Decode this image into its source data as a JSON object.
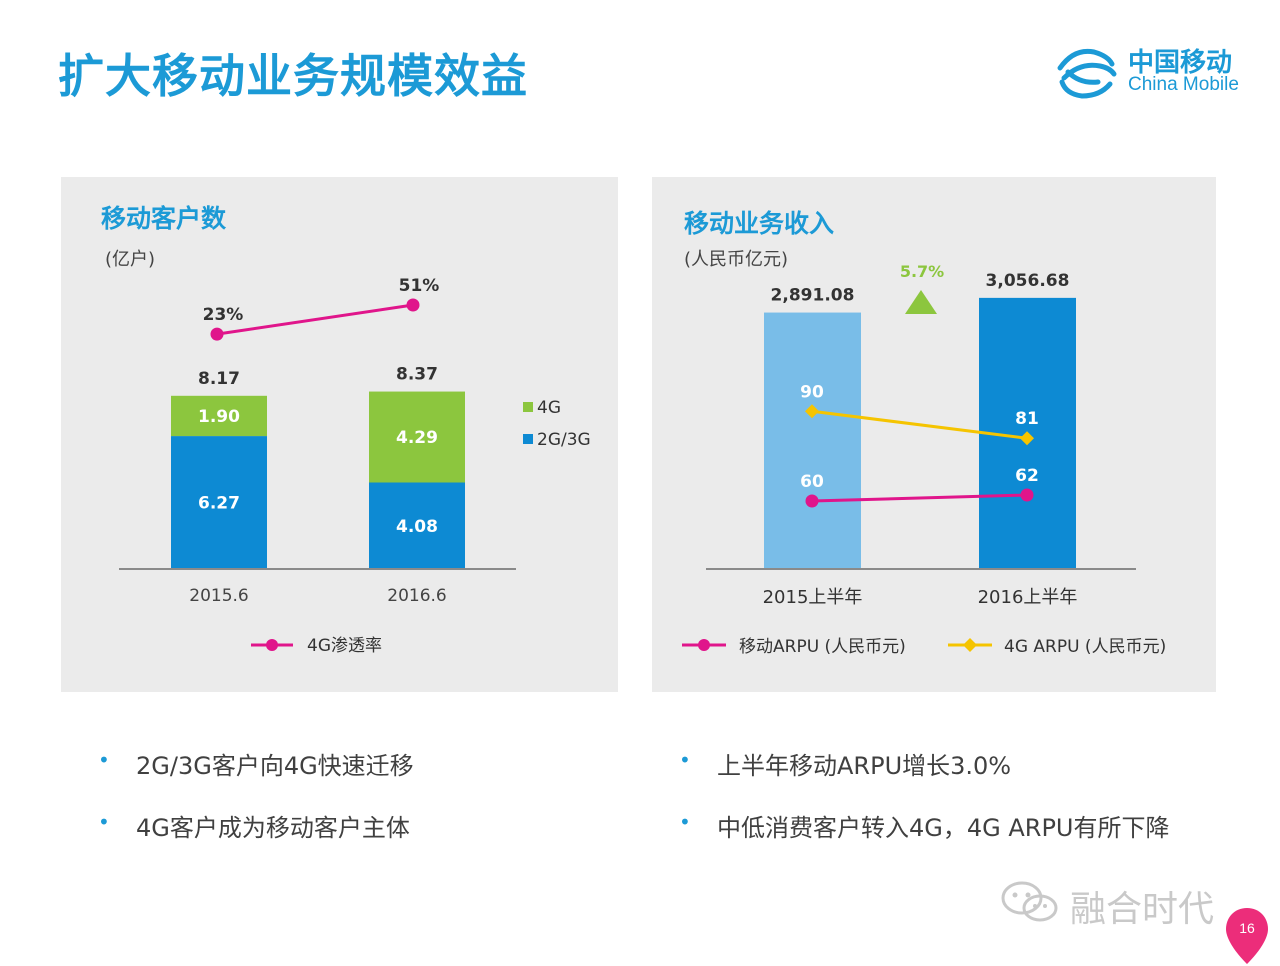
{
  "title": "扩大移动业务规模效益",
  "logo": {
    "name": "中国移动",
    "en": "China Mobile"
  },
  "colors": {
    "title_blue": "#1c9ad6",
    "bar_blue": "#0d8ad3",
    "bar_light_blue": "#79bde8",
    "bar_green": "#8cc63e",
    "line_magenta": "#e0158b",
    "line_yellow": "#f5c400",
    "panel_bg": "#ebebeb"
  },
  "chart_data": [
    {
      "type": "bar",
      "stacked": true,
      "title": "移动客户数",
      "unit": "(亿户)",
      "categories": [
        "2015.6",
        "2016.6"
      ],
      "series": [
        {
          "name": "2G/3G",
          "values": [
            6.27,
            4.08
          ],
          "color": "#0d8ad3",
          "labels": [
            "6.27",
            "4.08"
          ]
        },
        {
          "name": "4G",
          "values": [
            1.9,
            4.29
          ],
          "color": "#8cc63e",
          "labels": [
            "1.90",
            "4.29"
          ]
        }
      ],
      "totals": [
        "8.17",
        "8.37"
      ],
      "line_series": {
        "name": "4G渗透率",
        "values": [
          23,
          51
        ],
        "labels": [
          "23%",
          "51%"
        ],
        "color": "#e0158b"
      },
      "ylim": [
        0,
        9
      ],
      "legend_position": "right"
    },
    {
      "type": "bar",
      "title": "移动业务收入",
      "unit": "(人民币亿元)",
      "categories": [
        "2015上半年",
        "2016上半年"
      ],
      "values": [
        2891.08,
        3056.68
      ],
      "value_labels": [
        "2,891.08",
        "3,056.68"
      ],
      "bar_colors": [
        "#79bde8",
        "#0d8ad3"
      ],
      "growth_label": "5.7%",
      "growth_color": "#8cc63e",
      "ylim": [
        0,
        3400
      ],
      "line_series": [
        {
          "name": "移动ARPU (人民币元)",
          "values": [
            60,
            62
          ],
          "labels": [
            "60",
            "62"
          ],
          "color": "#e0158b"
        },
        {
          "name": "4G ARPU (人民币元)",
          "values": [
            90,
            81
          ],
          "labels": [
            "90",
            "81"
          ],
          "color": "#f5c400"
        }
      ],
      "legend_position": "bottom"
    }
  ],
  "bullets_left": [
    "2G/3G客户向4G快速迁移",
    "4G客户成为移动客户主体"
  ],
  "bullets_right": [
    "上半年移动ARPU增长3.0%",
    "中低消费客户转入4G，4G ARPU有所下降"
  ],
  "bullet_symbol": "•",
  "watermark": "融合时代",
  "page_number": "16"
}
